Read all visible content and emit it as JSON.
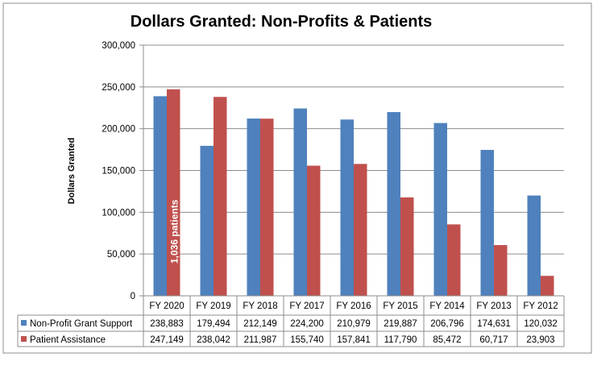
{
  "chart_data": {
    "type": "bar",
    "title": "Dollars Granted: Non-Profits & Patients",
    "xlabel": "",
    "ylabel": "Dollars Granted",
    "ylim": [
      0,
      300000
    ],
    "yticks": [
      0,
      50000,
      100000,
      150000,
      200000,
      250000,
      300000
    ],
    "ytick_labels": [
      "0",
      "50,000",
      "100,000",
      "150,000",
      "200,000",
      "250,000",
      "300,000"
    ],
    "grid": true,
    "legend": "data-table",
    "categories": [
      "FY 2020",
      "FY 2019",
      "FY 2018",
      "FY 2017",
      "FY 2016",
      "FY 2015",
      "FY 2014",
      "FY 2013",
      "FY 2012"
    ],
    "series": [
      {
        "name": "Non-Profit Grant Support",
        "color": "#4F81BD",
        "values": [
          238883,
          179494,
          212149,
          224200,
          210979,
          219887,
          206796,
          174631,
          120032
        ],
        "labels": [
          "238,883",
          "179,494",
          "212,149",
          "224,200",
          "210,979",
          "219,887",
          "206,796",
          "174,631",
          "120,032"
        ]
      },
      {
        "name": "Patient Assistance",
        "color": "#C0504D",
        "values": [
          247149,
          238042,
          211987,
          155740,
          157841,
          117790,
          85472,
          60717,
          23903
        ],
        "labels": [
          "247,149",
          "238,042",
          "211,987",
          "155,740",
          "157,841",
          "117,790",
          "85,472",
          "60,717",
          "23,903"
        ]
      }
    ],
    "annotations": [
      {
        "text": "1,036 patients",
        "category": "FY 2020",
        "series": "Patient Assistance"
      }
    ]
  }
}
